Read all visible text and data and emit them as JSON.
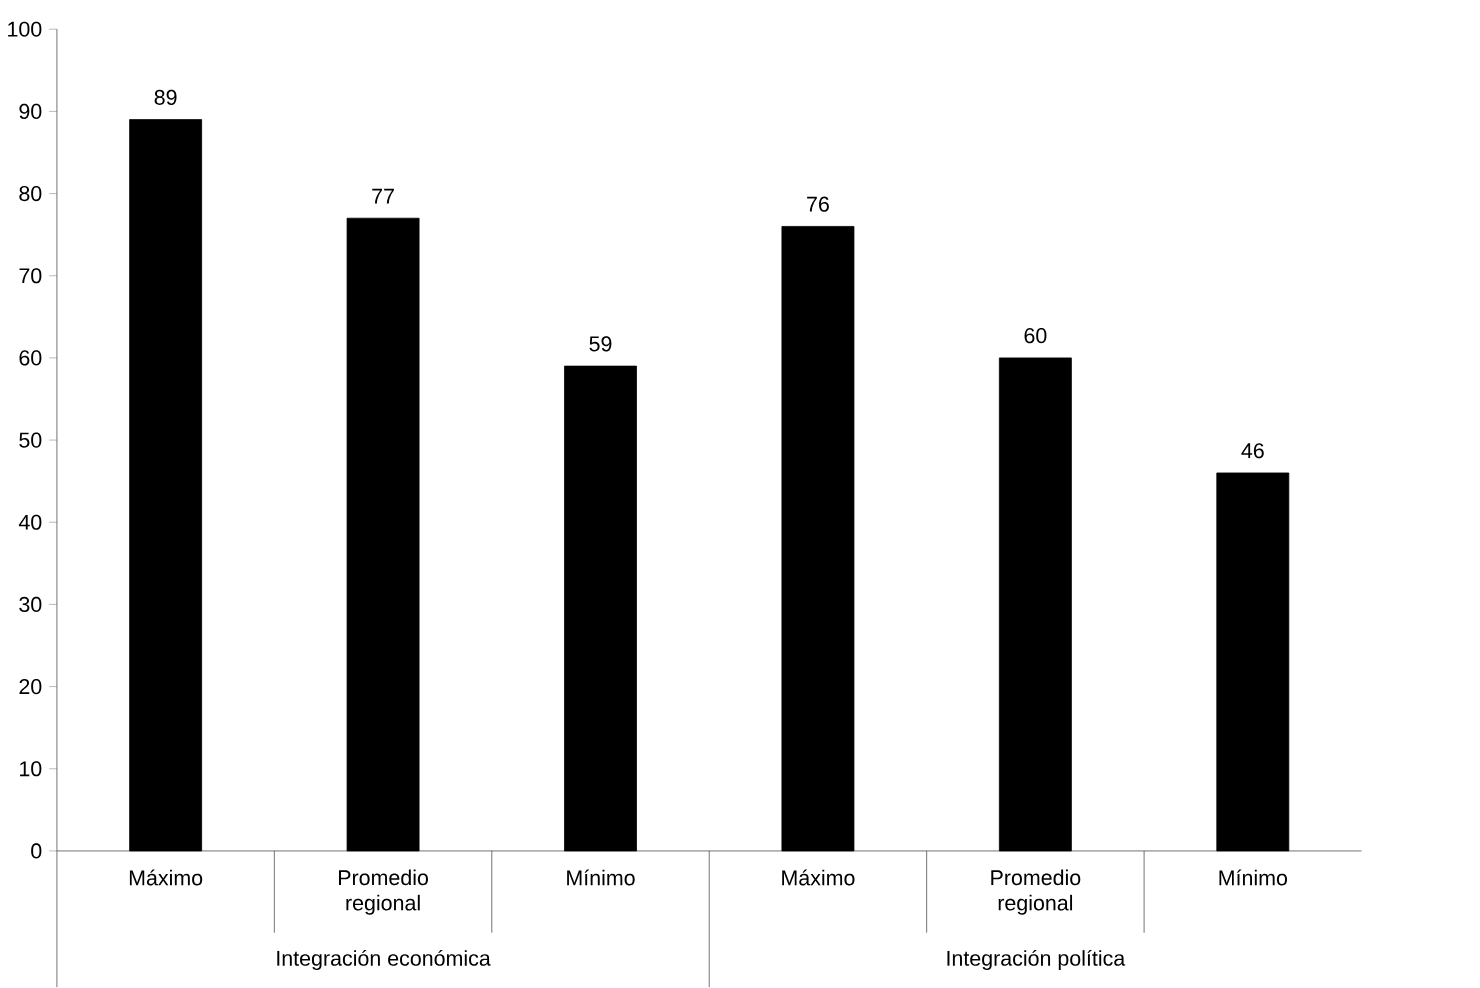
{
  "chart_data": {
    "type": "bar",
    "categories": [
      "Máximo",
      "Promedio regional",
      "Mínimo",
      "Máximo",
      "Promedio regional",
      "Mínimo"
    ],
    "values": [
      89,
      77,
      59,
      76,
      60,
      46
    ],
    "color": "#000000",
    "ylim": [
      0,
      100
    ],
    "yticks": [
      0,
      10,
      20,
      30,
      40,
      50,
      60,
      70,
      80,
      90,
      100
    ],
    "data_labels": true,
    "annotations": [
      "Integración económica",
      "Integración política"
    ]
  }
}
